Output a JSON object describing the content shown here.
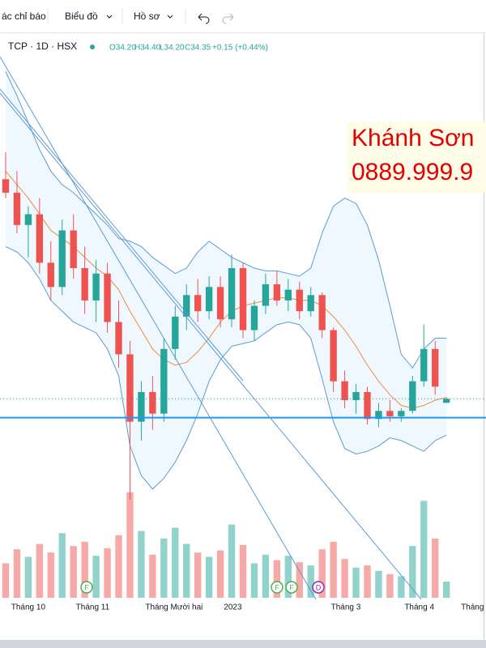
{
  "toolbar": {
    "items": [
      "ác chỉ báo",
      "Biểu đồ",
      "Hồ sơ"
    ]
  },
  "legend": {
    "symbol": "TCP · 1D · HSX",
    "open": "O34.20",
    "high": "H34.40",
    "low": "L34.20",
    "close": "C34.35",
    "change": "+0.15 (+0.44%)"
  },
  "watermark": [
    "Khánh Sơn",
    "0889.999.9"
  ],
  "events": [
    "F",
    "F",
    "F",
    "D"
  ],
  "chart_data": {
    "type": "candlestick",
    "x": [
      0,
      1,
      2,
      3,
      4,
      5,
      6,
      7,
      8,
      9,
      10,
      11,
      12,
      13,
      14,
      15,
      16,
      17,
      18,
      19,
      20,
      21,
      22,
      23,
      24,
      25,
      26,
      27,
      28,
      29,
      30,
      31,
      32,
      33,
      34,
      35,
      36,
      37,
      38,
      39
    ],
    "open": [
      42.5,
      42.0,
      40.8,
      41.2,
      39.4,
      38.5,
      40.6,
      39.2,
      38.0,
      39.0,
      37.2,
      36.0,
      33.5,
      34.6,
      33.8,
      36.2,
      37.4,
      38.2,
      37.6,
      38.5,
      37.3,
      39.2,
      36.9,
      37.8,
      38.6,
      38.0,
      38.4,
      37.6,
      38.2,
      36.9,
      35.0,
      34.3,
      34.6,
      33.6,
      33.9,
      33.7,
      33.9,
      35.0,
      36.2,
      34.2
    ],
    "high": [
      43.5,
      42.8,
      41.5,
      41.8,
      40.2,
      41.0,
      41.2,
      40.0,
      39.5,
      39.4,
      38.0,
      36.5,
      35.0,
      35.2,
      36.6,
      37.8,
      38.6,
      38.8,
      38.9,
      38.9,
      39.7,
      39.4,
      38.0,
      39.0,
      39.1,
      38.8,
      38.7,
      38.5,
      38.3,
      37.0,
      35.4,
      34.9,
      34.8,
      34.2,
      34.3,
      34.0,
      35.2,
      37.1,
      36.5,
      34.4
    ],
    "low": [
      41.8,
      40.5,
      39.6,
      39.0,
      38.0,
      38.2,
      38.8,
      37.5,
      37.2,
      36.8,
      35.5,
      30.6,
      32.8,
      33.2,
      33.5,
      35.8,
      36.9,
      37.2,
      37.3,
      37.0,
      37.0,
      36.6,
      36.5,
      37.5,
      37.8,
      37.6,
      37.3,
      37.4,
      36.6,
      34.6,
      34.0,
      33.8,
      33.4,
      33.3,
      33.5,
      33.5,
      33.8,
      34.8,
      34.5,
      34.2
    ],
    "close": [
      42.0,
      40.8,
      41.2,
      39.4,
      38.5,
      40.6,
      39.2,
      38.0,
      39.0,
      37.2,
      36.0,
      33.5,
      34.6,
      33.8,
      36.2,
      37.4,
      38.2,
      37.6,
      38.5,
      37.3,
      39.2,
      36.9,
      37.8,
      38.6,
      38.0,
      38.4,
      37.6,
      38.2,
      36.9,
      35.0,
      34.3,
      34.6,
      33.6,
      33.9,
      33.7,
      33.9,
      35.0,
      36.2,
      34.8,
      34.35
    ],
    "ma": [
      42.8,
      42.3,
      41.8,
      41.2,
      40.6,
      40.3,
      40.0,
      39.6,
      39.2,
      38.9,
      38.4,
      37.6,
      36.9,
      36.2,
      35.8,
      35.6,
      35.7,
      36.1,
      36.6,
      37.2,
      37.6,
      37.8,
      37.9,
      38.0,
      38.1,
      38.1,
      38.0,
      38.0,
      37.8,
      37.4,
      36.9,
      36.3,
      35.6,
      35.0,
      34.5,
      34.1,
      34.0,
      34.1,
      34.3,
      34.4
    ],
    "upper": [
      46.5,
      45.6,
      44.6,
      43.6,
      42.8,
      42.3,
      42.0,
      41.6,
      41.2,
      40.8,
      40.3,
      40.2,
      40.0,
      39.6,
      39.3,
      39.0,
      39.2,
      39.8,
      40.2,
      39.9,
      39.6,
      39.4,
      39.2,
      39.1,
      39.1,
      39.0,
      38.9,
      39.2,
      40.5,
      41.5,
      41.8,
      41.6,
      40.8,
      39.5,
      37.8,
      36.0,
      35.5,
      36.2,
      36.6,
      36.6
    ],
    "lower": [
      40.0,
      39.8,
      39.4,
      38.8,
      38.0,
      37.6,
      37.2,
      37.0,
      36.8,
      36.2,
      35.2,
      32.6,
      31.5,
      31.0,
      31.4,
      32.0,
      32.8,
      33.8,
      35.0,
      35.8,
      36.3,
      36.4,
      36.5,
      36.8,
      37.1,
      37.2,
      37.1,
      36.6,
      35.1,
      33.5,
      32.5,
      32.3,
      32.4,
      32.6,
      32.9,
      32.8,
      32.6,
      32.4,
      32.8,
      33.0
    ],
    "volume": [
      3.2,
      4.5,
      3.8,
      5.0,
      4.2,
      6.0,
      4.8,
      5.2,
      3.9,
      4.6,
      5.8,
      9.8,
      6.2,
      4.0,
      5.5,
      6.5,
      5.0,
      4.2,
      3.8,
      4.4,
      6.8,
      4.9,
      3.2,
      4.0,
      3.5,
      3.9,
      3.3,
      3.0,
      4.5,
      5.2,
      3.6,
      2.8,
      3.0,
      2.5,
      2.2,
      2.0,
      4.8,
      9.0,
      5.5,
      1.5
    ],
    "hline": 33.65,
    "xlim": [
      -0.5,
      42.5
    ],
    "ylim": [
      30,
      47.8
    ],
    "vlim": [
      0,
      10
    ],
    "xticks": [
      {
        "value": 2,
        "label": "Tháng 10"
      },
      {
        "value": 7.7,
        "label": "Tháng 11"
      },
      {
        "value": 14.9,
        "label": "Tháng Mười hai"
      },
      {
        "value": 20.1,
        "label": "2023"
      },
      {
        "value": 30.1,
        "label": "Tháng 3"
      },
      {
        "value": 36.6,
        "label": "Tháng 4"
      },
      {
        "value": 41.3,
        "label": "Tháng"
      }
    ]
  }
}
